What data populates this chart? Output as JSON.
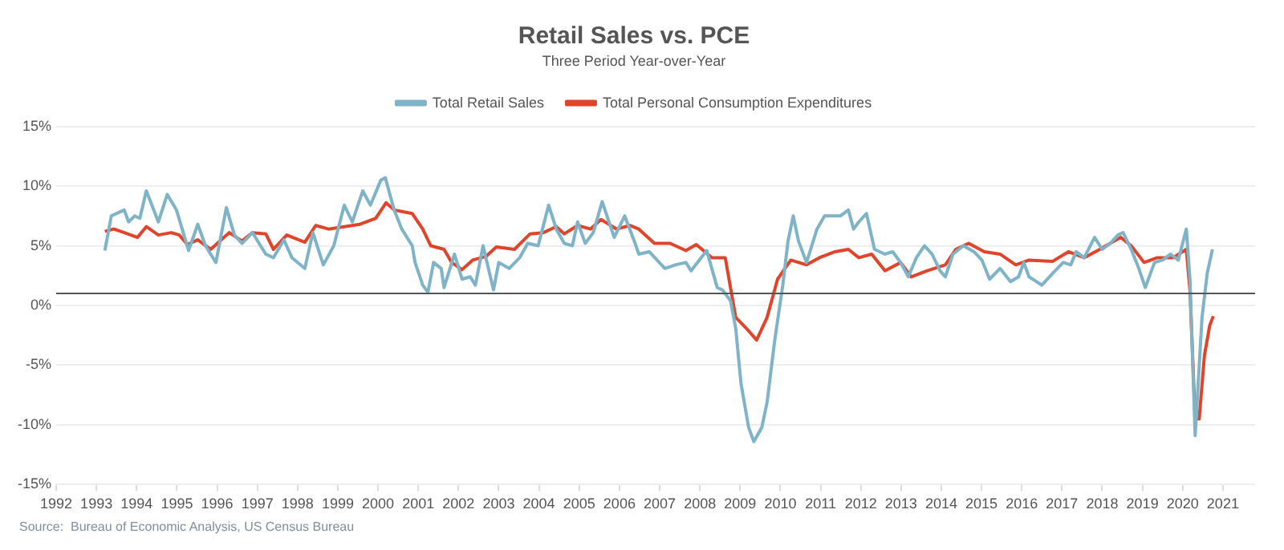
{
  "chart_data": {
    "type": "line",
    "title": "Retail Sales vs. PCE",
    "subtitle": "Three Period Year-over-Year",
    "annotations": [
      "Source:  Bureau of Economic Analysis, US Census Bureau"
    ],
    "legend": "top",
    "grid": "y",
    "marker": "none",
    "line_style": "solid",
    "xlim": [
      1992,
      2021.8
    ],
    "xticks": [
      1992,
      1993,
      1994,
      1995,
      1996,
      1997,
      1998,
      1999,
      2000,
      2001,
      2002,
      2003,
      2004,
      2005,
      2006,
      2007,
      2008,
      2009,
      2010,
      2011,
      2012,
      2013,
      2014,
      2015,
      2016,
      2017,
      2018,
      2019,
      2020,
      2021
    ],
    "ylim": [
      -15,
      15
    ],
    "yticks": [
      {
        "value": -15,
        "label": "-15%"
      },
      {
        "value": -10,
        "label": "-10%"
      },
      {
        "value": -5,
        "label": "-5%"
      },
      {
        "value": 0,
        "label": "0%"
      },
      {
        "value": 5,
        "label": "5%"
      },
      {
        "value": 10,
        "label": "10%"
      },
      {
        "value": 15,
        "label": "15%"
      }
    ],
    "ref_lines": [
      {
        "axis": "y",
        "value": 1,
        "label": null,
        "color": "#555555"
      }
    ],
    "series": [
      {
        "name": "Total Retail Sales",
        "color": "#7fb3c8",
        "x": [
          1993.21,
          1993.37,
          1993.69,
          1993.8,
          1993.95,
          1994.08,
          1994.24,
          1994.54,
          1994.76,
          1994.99,
          1995.22,
          1995.29,
          1995.52,
          1995.71,
          1995.97,
          1996.23,
          1996.43,
          1996.62,
          1996.88,
          1997.08,
          1997.21,
          1997.4,
          1997.66,
          1997.86,
          1998.18,
          1998.38,
          1998.64,
          1998.9,
          1999.16,
          1999.36,
          1999.62,
          1999.81,
          2000.07,
          2000.18,
          2000.4,
          2000.59,
          2000.85,
          2000.92,
          2001.11,
          2001.24,
          2001.38,
          2001.57,
          2001.64,
          2001.9,
          2002.09,
          2002.29,
          2002.42,
          2002.61,
          2002.87,
          2003.0,
          2003.26,
          2003.52,
          2003.72,
          2003.98,
          2004.24,
          2004.43,
          2004.63,
          2004.83,
          2004.96,
          2005.15,
          2005.35,
          2005.57,
          2005.87,
          2006.13,
          2006.39,
          2006.48,
          2006.74,
          2007.13,
          2007.39,
          2007.65,
          2007.78,
          2008.17,
          2008.43,
          2008.56,
          2008.76,
          2008.89,
          2009.02,
          2009.21,
          2009.34,
          2009.54,
          2009.67,
          2009.86,
          2010.06,
          2010.19,
          2010.32,
          2010.45,
          2010.65,
          2010.78,
          2010.91,
          2011.1,
          2011.3,
          2011.49,
          2011.69,
          2011.82,
          2011.95,
          2012.14,
          2012.34,
          2012.6,
          2012.79,
          2012.99,
          2013.18,
          2013.38,
          2013.58,
          2013.77,
          2013.97,
          2014.1,
          2014.29,
          2014.55,
          2014.81,
          2015.01,
          2015.2,
          2015.46,
          2015.72,
          2015.92,
          2016.05,
          2016.18,
          2016.5,
          2016.77,
          2017.03,
          2017.22,
          2017.35,
          2017.55,
          2017.81,
          2018.0,
          2018.2,
          2018.39,
          2018.52,
          2018.72,
          2018.91,
          2019.07,
          2019.3,
          2019.5,
          2019.7,
          2019.89,
          2020.09,
          2020.18,
          2020.31,
          2020.48,
          2020.61,
          2020.74
        ],
        "values": [
          4.6,
          7.5,
          8.0,
          7.0,
          7.5,
          7.3,
          9.6,
          7.0,
          9.3,
          8.0,
          5.4,
          4.6,
          6.8,
          5.0,
          3.6,
          8.2,
          5.9,
          5.2,
          6.1,
          5.0,
          4.3,
          4.0,
          5.5,
          4.0,
          3.1,
          6.1,
          3.4,
          5.0,
          8.4,
          7.0,
          9.6,
          8.4,
          10.5,
          10.7,
          8.0,
          6.4,
          5.0,
          3.6,
          1.7,
          1.1,
          3.6,
          3.1,
          1.5,
          4.3,
          2.2,
          2.4,
          1.7,
          5.0,
          1.3,
          3.6,
          3.1,
          4.0,
          5.2,
          5.0,
          8.4,
          6.4,
          5.2,
          5.0,
          7.0,
          5.2,
          6.1,
          8.7,
          5.7,
          7.5,
          5.2,
          4.3,
          4.5,
          3.1,
          3.4,
          3.6,
          2.9,
          4.6,
          1.5,
          1.3,
          0.4,
          -1.9,
          -6.5,
          -10.2,
          -11.4,
          -10.2,
          -8.1,
          -2.9,
          1.7,
          5.4,
          7.5,
          5.4,
          3.6,
          5.0,
          6.4,
          7.5,
          7.5,
          7.5,
          8.0,
          6.4,
          7.0,
          7.7,
          4.7,
          4.3,
          4.5,
          3.6,
          2.4,
          4.0,
          5.0,
          4.3,
          2.9,
          2.4,
          4.3,
          5.0,
          4.5,
          3.8,
          2.2,
          3.1,
          2.0,
          2.4,
          3.6,
          2.4,
          1.7,
          2.7,
          3.6,
          3.4,
          4.5,
          4.0,
          5.7,
          4.7,
          5.2,
          5.9,
          6.1,
          4.7,
          3.1,
          1.5,
          3.6,
          3.8,
          4.3,
          3.8,
          6.4,
          2.2,
          -10.9,
          -1.0,
          2.7,
          4.7
        ]
      },
      {
        "name": "Total Personal Consumption Expenditures",
        "color": "#e0452b",
        "x": [
          1993.21,
          1993.43,
          1993.69,
          1994.02,
          1994.24,
          1994.54,
          1994.86,
          1995.06,
          1995.26,
          1995.52,
          1995.84,
          1996.3,
          1996.62,
          1996.88,
          1997.21,
          1997.4,
          1997.73,
          1998.18,
          1998.45,
          1998.77,
          1999.16,
          1999.55,
          1999.94,
          2000.2,
          2000.4,
          2000.85,
          2001.11,
          2001.31,
          2001.64,
          2001.83,
          2002.09,
          2002.35,
          2002.68,
          2002.94,
          2003.39,
          2003.78,
          2004.11,
          2004.43,
          2004.63,
          2004.96,
          2005.28,
          2005.54,
          2005.93,
          2006.26,
          2006.48,
          2006.87,
          2007.26,
          2007.65,
          2007.91,
          2008.3,
          2008.63,
          2008.89,
          2009.15,
          2009.41,
          2009.67,
          2009.93,
          2010.26,
          2010.65,
          2010.97,
          2011.36,
          2011.69,
          2011.95,
          2012.27,
          2012.6,
          2012.99,
          2013.25,
          2013.64,
          2014.1,
          2014.36,
          2014.68,
          2015.07,
          2015.46,
          2015.85,
          2016.18,
          2016.77,
          2017.16,
          2017.55,
          2017.94,
          2018.46,
          2018.72,
          2019.04,
          2019.37,
          2019.76,
          2020.09,
          2020.18,
          2020.31,
          2020.41,
          2020.54,
          2020.67,
          2020.76
        ],
        "values": [
          6.2,
          6.4,
          6.1,
          5.7,
          6.6,
          5.9,
          6.1,
          5.9,
          5.1,
          5.5,
          4.7,
          6.1,
          5.4,
          6.1,
          6.0,
          4.7,
          5.9,
          5.3,
          6.7,
          6.4,
          6.6,
          6.8,
          7.3,
          8.6,
          8.0,
          7.7,
          6.4,
          5.0,
          4.7,
          3.6,
          3.0,
          3.8,
          4.1,
          4.9,
          4.7,
          6.0,
          6.1,
          6.6,
          6.0,
          6.7,
          6.4,
          7.2,
          6.4,
          6.7,
          6.4,
          5.2,
          5.2,
          4.6,
          5.1,
          4.0,
          4.0,
          -1.0,
          -1.9,
          -2.9,
          -1.0,
          2.2,
          3.8,
          3.4,
          4.0,
          4.5,
          4.7,
          4.0,
          4.3,
          2.9,
          3.6,
          2.4,
          2.9,
          3.4,
          4.7,
          5.2,
          4.5,
          4.3,
          3.4,
          3.8,
          3.7,
          4.5,
          4.0,
          4.7,
          5.7,
          5.0,
          3.6,
          4.0,
          4.0,
          4.7,
          1.3,
          -9.5,
          -9.5,
          -4.2,
          -1.7,
          -0.9
        ]
      }
    ]
  }
}
